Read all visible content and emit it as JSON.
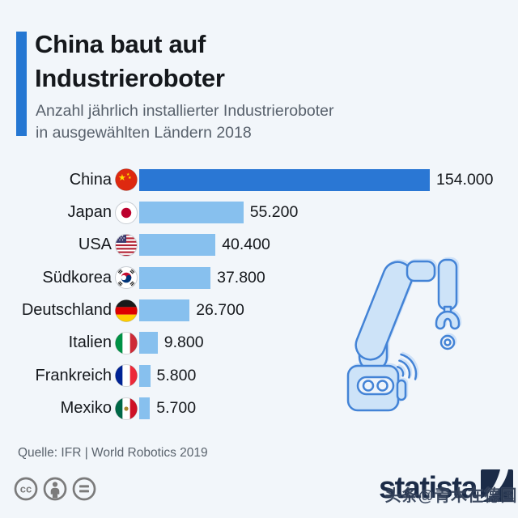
{
  "header": {
    "title_line1": "China baut auf",
    "title_line2": "Industrieroboter",
    "subtitle_line1": "Anzahl jährlich installierter Industrieroboter",
    "subtitle_line2": "in ausgewählten Ländern 2018"
  },
  "chart_data": {
    "type": "bar",
    "orientation": "horizontal",
    "title": "China baut auf Industrieroboter",
    "subtitle": "Anzahl jährlich installierter Industrieroboter in ausgewählten Ländern 2018",
    "categories": [
      "China",
      "Japan",
      "USA",
      "Südkorea",
      "Deutschland",
      "Italien",
      "Frankreich",
      "Mexiko"
    ],
    "values": [
      154000,
      55200,
      40400,
      37800,
      26700,
      9800,
      5800,
      5700
    ],
    "value_labels": [
      "154.000",
      "55.200",
      "40.400",
      "37.800",
      "26.700",
      "9.800",
      "5.800",
      "5.700"
    ],
    "flags": [
      "china-flag-icon",
      "japan-flag-icon",
      "usa-flag-icon",
      "south-korea-flag-icon",
      "germany-flag-icon",
      "italy-flag-icon",
      "france-flag-icon",
      "mexico-flag-icon"
    ],
    "xlim": [
      0,
      154000
    ],
    "grid": false,
    "legend": "none",
    "highlight_category": "China",
    "colors": {
      "highlight": "#2a77d4",
      "default": "#87c0ee"
    }
  },
  "footer": {
    "source": "Quelle: IFR | World Robotics 2019",
    "license_icons": [
      "cc-icon",
      "attribution-icon",
      "no-derivatives-icon"
    ],
    "brand": "statista",
    "watermark": "头条@青木在德国"
  },
  "colors": {
    "background": "#f2f6fa",
    "accent": "#2577d2",
    "title_text": "#15181c",
    "subtitle_text": "#58616c",
    "brand_navy": "#1b2b47",
    "license_gray": "#7b7b7b",
    "robot_fill": "#cde3f8",
    "robot_stroke": "#4383d6"
  }
}
